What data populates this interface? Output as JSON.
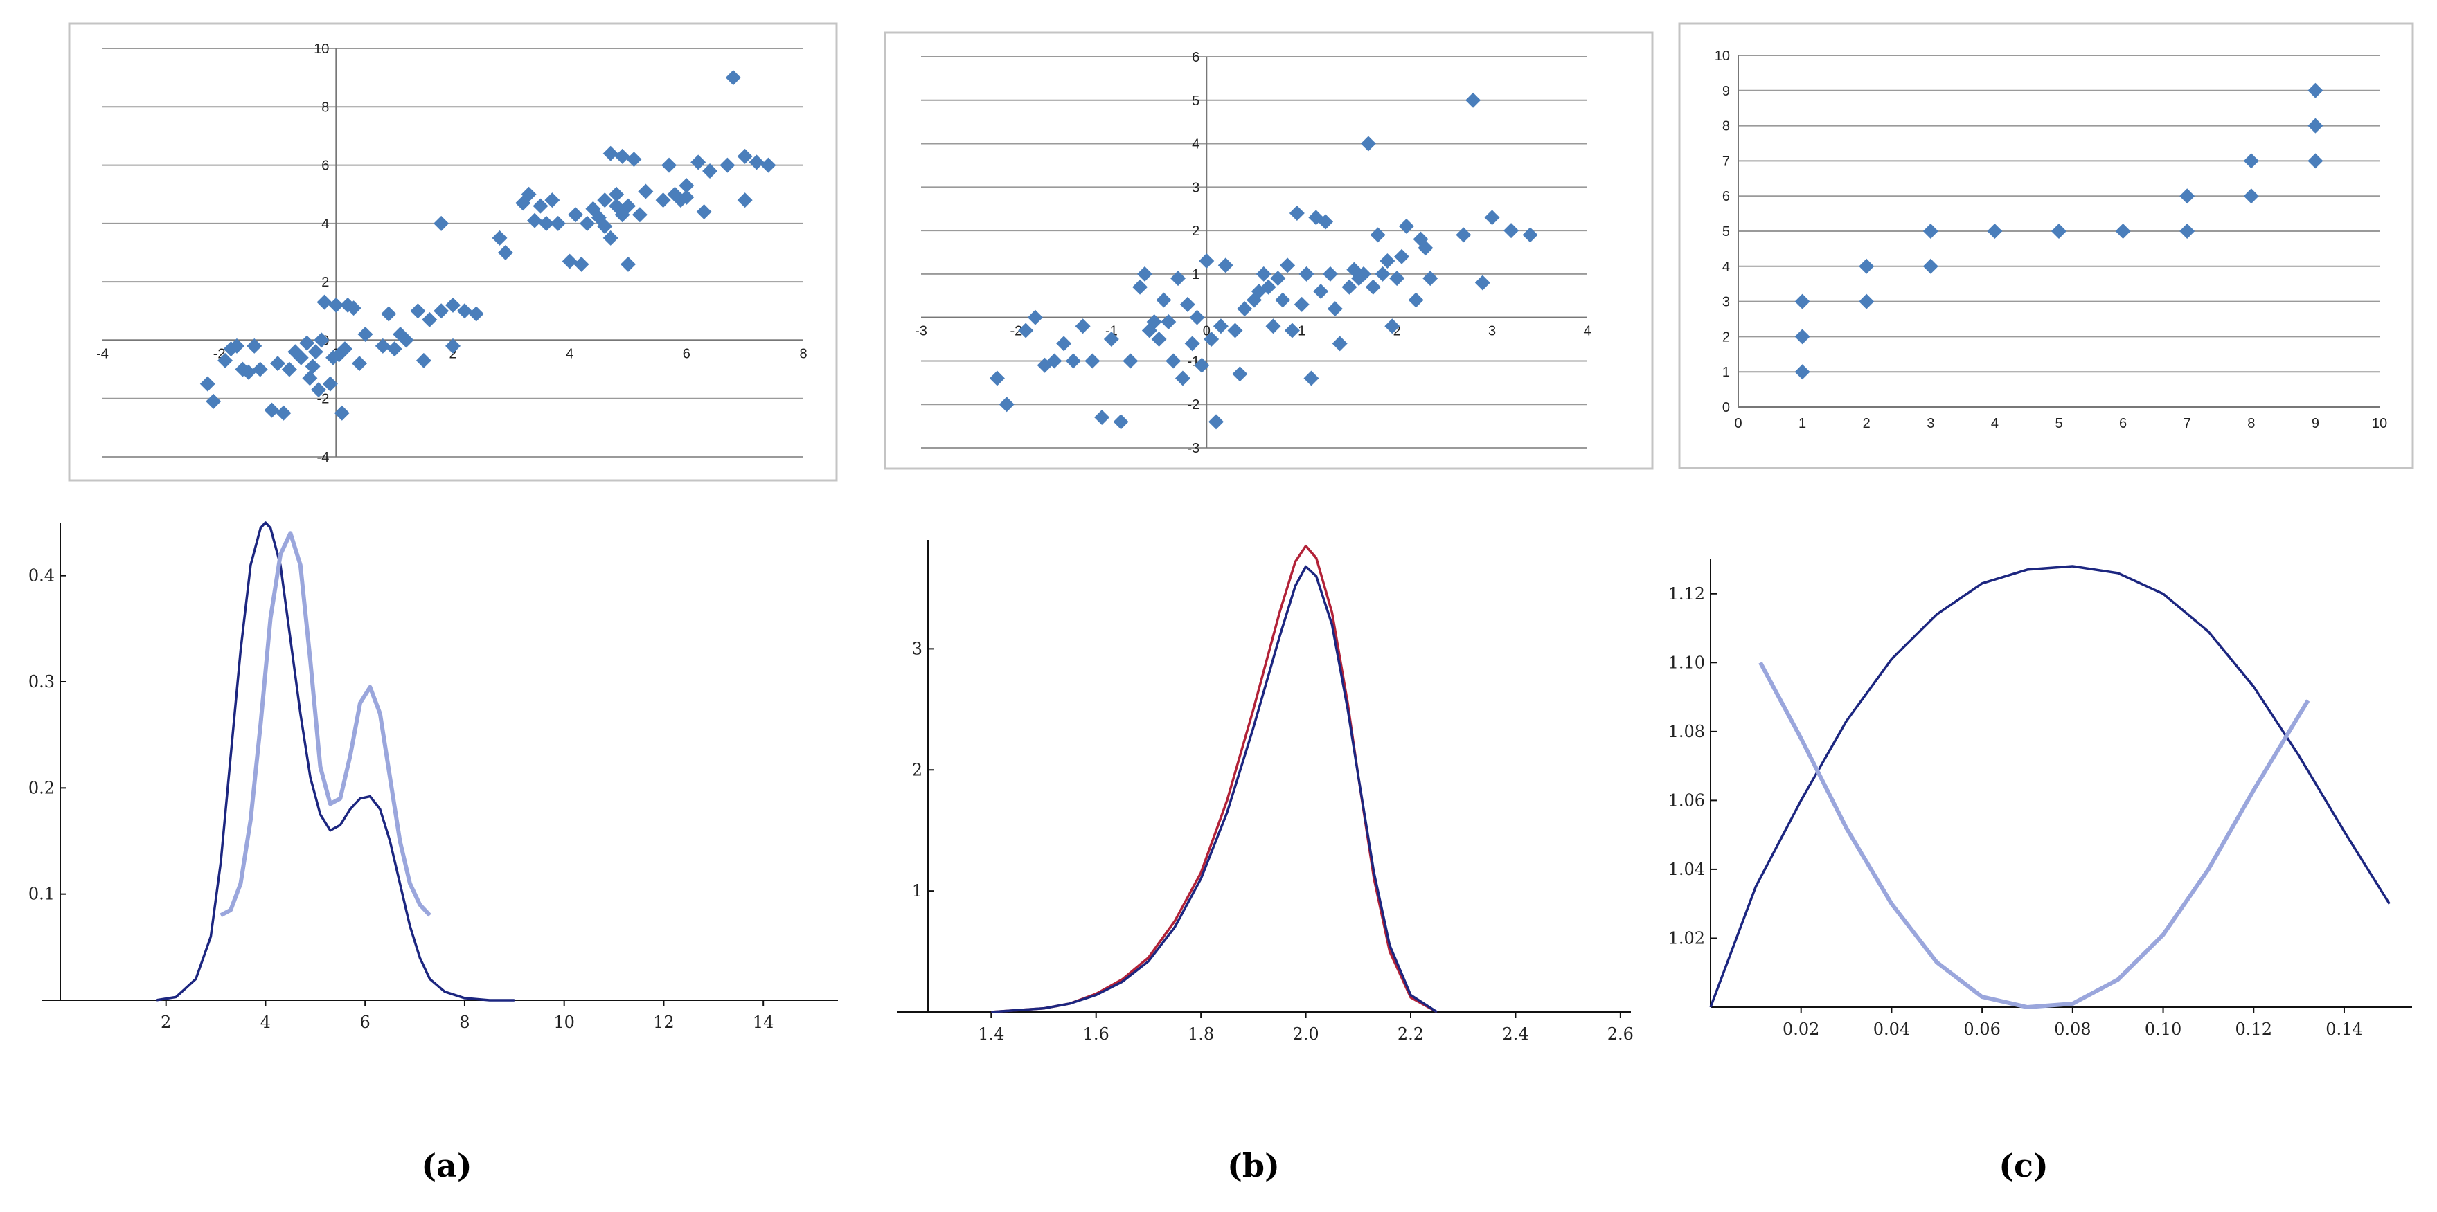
{
  "colors": {
    "scatter": "#4a7ebb",
    "dark": "#1c2680",
    "light": "#9aa6dc",
    "red": "#b22238",
    "grid": "#9a9a9a",
    "frame": "#c4c4c4"
  },
  "captions": [
    "(a)",
    "(b)",
    "(c)"
  ],
  "chart_data": [
    {
      "id": "a_top",
      "type": "scatter",
      "title": "",
      "xlabel": "",
      "ylabel": "",
      "xlim": [
        -4,
        8
      ],
      "ylim": [
        -4,
        10
      ],
      "grid": true,
      "xticks": [
        -4,
        -2,
        0,
        2,
        4,
        6,
        8
      ],
      "yticks": [
        -4,
        -2,
        0,
        2,
        4,
        6,
        8,
        10
      ],
      "points": [
        [
          -2.2,
          -1.5
        ],
        [
          -2.1,
          -2.1
        ],
        [
          -1.9,
          -0.7
        ],
        [
          -1.8,
          -0.3
        ],
        [
          -1.7,
          -0.2
        ],
        [
          -1.6,
          -1.0
        ],
        [
          -1.5,
          -1.1
        ],
        [
          -1.4,
          -0.2
        ],
        [
          -1.3,
          -1.0
        ],
        [
          -1.1,
          -2.4
        ],
        [
          -1.0,
          -0.8
        ],
        [
          -0.9,
          -2.5
        ],
        [
          -0.8,
          -1.0
        ],
        [
          -0.7,
          -0.4
        ],
        [
          -0.6,
          -0.6
        ],
        [
          -0.5,
          -0.1
        ],
        [
          -0.45,
          -1.3
        ],
        [
          -0.4,
          -0.9
        ],
        [
          -0.35,
          -0.4
        ],
        [
          -0.3,
          -1.7
        ],
        [
          -0.25,
          0.0
        ],
        [
          -0.2,
          1.3
        ],
        [
          -0.1,
          -1.5
        ],
        [
          -0.05,
          -0.6
        ],
        [
          0.0,
          1.2
        ],
        [
          0.05,
          -0.5
        ],
        [
          0.1,
          -2.5
        ],
        [
          0.15,
          -0.3
        ],
        [
          0.2,
          1.2
        ],
        [
          0.3,
          1.1
        ],
        [
          0.4,
          -0.8
        ],
        [
          0.5,
          0.2
        ],
        [
          0.8,
          -0.2
        ],
        [
          0.9,
          0.9
        ],
        [
          1.0,
          -0.3
        ],
        [
          1.1,
          0.2
        ],
        [
          1.2,
          0.0
        ],
        [
          1.4,
          1.0
        ],
        [
          1.5,
          -0.7
        ],
        [
          1.6,
          0.7
        ],
        [
          1.8,
          1.0
        ],
        [
          1.8,
          4.0
        ],
        [
          2.0,
          -0.2
        ],
        [
          2.0,
          1.2
        ],
        [
          2.2,
          1.0
        ],
        [
          2.4,
          0.9
        ],
        [
          2.8,
          3.5
        ],
        [
          2.9,
          3.0
        ],
        [
          3.2,
          4.7
        ],
        [
          3.3,
          5.0
        ],
        [
          3.4,
          4.1
        ],
        [
          3.5,
          4.6
        ],
        [
          3.6,
          4.0
        ],
        [
          3.7,
          4.8
        ],
        [
          3.8,
          4.0
        ],
        [
          4.0,
          2.7
        ],
        [
          4.1,
          4.3
        ],
        [
          4.2,
          2.6
        ],
        [
          4.3,
          4.0
        ],
        [
          4.4,
          4.5
        ],
        [
          4.5,
          4.2
        ],
        [
          4.6,
          4.8
        ],
        [
          4.6,
          3.9
        ],
        [
          4.7,
          6.4
        ],
        [
          4.7,
          3.5
        ],
        [
          4.8,
          5.0
        ],
        [
          4.8,
          4.6
        ],
        [
          4.9,
          6.3
        ],
        [
          4.9,
          4.3
        ],
        [
          5.0,
          2.6
        ],
        [
          5.0,
          4.6
        ],
        [
          5.1,
          6.2
        ],
        [
          5.2,
          4.3
        ],
        [
          5.3,
          5.1
        ],
        [
          5.6,
          4.8
        ],
        [
          5.7,
          6.0
        ],
        [
          5.8,
          5.0
        ],
        [
          5.9,
          4.8
        ],
        [
          6.0,
          5.3
        ],
        [
          6.0,
          4.9
        ],
        [
          6.2,
          6.1
        ],
        [
          6.3,
          4.4
        ],
        [
          6.4,
          5.8
        ],
        [
          6.7,
          6.0
        ],
        [
          6.8,
          9.0
        ],
        [
          7.0,
          6.3
        ],
        [
          7.0,
          4.8
        ],
        [
          7.2,
          6.1
        ],
        [
          7.4,
          6.0
        ]
      ]
    },
    {
      "id": "b_top",
      "type": "scatter",
      "title": "",
      "xlabel": "",
      "ylabel": "",
      "xlim": [
        -3,
        4
      ],
      "ylim": [
        -3,
        6
      ],
      "grid": true,
      "xticks": [
        -3,
        -2,
        -1,
        0,
        1,
        2,
        3,
        4
      ],
      "yticks": [
        -3,
        -2,
        -1,
        0,
        1,
        2,
        3,
        4,
        5,
        6
      ],
      "points": [
        [
          -2.2,
          -1.4
        ],
        [
          -2.1,
          -2.0
        ],
        [
          -1.9,
          -0.3
        ],
        [
          -1.8,
          0.0
        ],
        [
          -1.7,
          -1.1
        ],
        [
          -1.6,
          -1.0
        ],
        [
          -1.5,
          -0.6
        ],
        [
          -1.4,
          -1.0
        ],
        [
          -1.3,
          -0.2
        ],
        [
          -1.2,
          -1.0
        ],
        [
          -1.1,
          -2.3
        ],
        [
          -1.0,
          -0.5
        ],
        [
          -0.9,
          -2.4
        ],
        [
          -0.8,
          -1.0
        ],
        [
          -0.7,
          0.7
        ],
        [
          -0.65,
          1.0
        ],
        [
          -0.6,
          -0.3
        ],
        [
          -0.55,
          -0.1
        ],
        [
          -0.5,
          -0.5
        ],
        [
          -0.45,
          0.4
        ],
        [
          -0.4,
          -0.1
        ],
        [
          -0.35,
          -1.0
        ],
        [
          -0.3,
          0.9
        ],
        [
          -0.25,
          -1.4
        ],
        [
          -0.2,
          0.3
        ],
        [
          -0.15,
          -0.6
        ],
        [
          -0.1,
          0.0
        ],
        [
          -0.05,
          -1.1
        ],
        [
          0.0,
          1.3
        ],
        [
          0.05,
          -0.5
        ],
        [
          0.1,
          -2.4
        ],
        [
          0.15,
          -0.2
        ],
        [
          0.2,
          1.2
        ],
        [
          0.3,
          -0.3
        ],
        [
          0.35,
          -1.3
        ],
        [
          0.4,
          0.2
        ],
        [
          0.5,
          0.4
        ],
        [
          0.55,
          0.6
        ],
        [
          0.6,
          1.0
        ],
        [
          0.65,
          0.7
        ],
        [
          0.7,
          -0.2
        ],
        [
          0.75,
          0.9
        ],
        [
          0.8,
          0.4
        ],
        [
          0.85,
          1.2
        ],
        [
          0.9,
          -0.3
        ],
        [
          0.95,
          2.4
        ],
        [
          1.0,
          0.3
        ],
        [
          1.05,
          1.0
        ],
        [
          1.1,
          -1.4
        ],
        [
          1.15,
          2.3
        ],
        [
          1.2,
          0.6
        ],
        [
          1.25,
          2.2
        ],
        [
          1.3,
          1.0
        ],
        [
          1.35,
          0.2
        ],
        [
          1.4,
          -0.6
        ],
        [
          1.5,
          0.7
        ],
        [
          1.55,
          1.1
        ],
        [
          1.6,
          0.9
        ],
        [
          1.65,
          1.0
        ],
        [
          1.7,
          4.0
        ],
        [
          1.75,
          0.7
        ],
        [
          1.8,
          1.9
        ],
        [
          1.85,
          1.0
        ],
        [
          1.9,
          1.3
        ],
        [
          1.95,
          -0.2
        ],
        [
          2.0,
          0.9
        ],
        [
          2.05,
          1.4
        ],
        [
          2.1,
          2.1
        ],
        [
          2.2,
          0.4
        ],
        [
          2.25,
          1.8
        ],
        [
          2.3,
          1.6
        ],
        [
          2.35,
          0.9
        ],
        [
          2.7,
          1.9
        ],
        [
          2.8,
          5.0
        ],
        [
          2.9,
          0.8
        ],
        [
          3.0,
          2.3
        ],
        [
          3.2,
          2.0
        ],
        [
          3.4,
          1.9
        ]
      ]
    },
    {
      "id": "c_top",
      "type": "scatter",
      "title": "",
      "xlabel": "",
      "ylabel": "",
      "xlim": [
        0,
        10
      ],
      "ylim": [
        0,
        10
      ],
      "grid": true,
      "xticks": [
        0,
        1,
        2,
        3,
        4,
        5,
        6,
        7,
        8,
        9,
        10
      ],
      "yticks": [
        0,
        1,
        2,
        3,
        4,
        5,
        6,
        7,
        8,
        9,
        10
      ],
      "points": [
        [
          1,
          1
        ],
        [
          1,
          2
        ],
        [
          1,
          3
        ],
        [
          2,
          3
        ],
        [
          2,
          4
        ],
        [
          3,
          4
        ],
        [
          3,
          5
        ],
        [
          4,
          5
        ],
        [
          5,
          5
        ],
        [
          6,
          5
        ],
        [
          7,
          5
        ],
        [
          7,
          6
        ],
        [
          8,
          6
        ],
        [
          8,
          7
        ],
        [
          9,
          7
        ],
        [
          9,
          8
        ],
        [
          9,
          9
        ]
      ]
    },
    {
      "id": "a_bottom",
      "type": "line",
      "title": "",
      "xlabel": "",
      "ylabel": "",
      "xlim": [
        -0.5,
        15.5
      ],
      "ylim": [
        0,
        0.45
      ],
      "xticks": [
        2,
        4,
        6,
        8,
        10,
        12,
        14
      ],
      "yticks": [
        0.1,
        0.2,
        0.3,
        0.4
      ],
      "series": [
        {
          "name": "dark",
          "x": [
            1.8,
            2.2,
            2.6,
            2.9,
            3.1,
            3.3,
            3.5,
            3.7,
            3.9,
            4.0,
            4.1,
            4.3,
            4.5,
            4.7,
            4.9,
            5.1,
            5.3,
            5.5,
            5.7,
            5.9,
            6.1,
            6.3,
            6.5,
            6.7,
            6.9,
            7.1,
            7.3,
            7.6,
            8.0,
            8.5,
            9.0
          ],
          "y": [
            0.0,
            0.003,
            0.02,
            0.06,
            0.13,
            0.23,
            0.33,
            0.41,
            0.445,
            0.45,
            0.445,
            0.41,
            0.34,
            0.27,
            0.21,
            0.175,
            0.16,
            0.165,
            0.18,
            0.19,
            0.192,
            0.18,
            0.15,
            0.11,
            0.07,
            0.04,
            0.02,
            0.008,
            0.002,
            0.0,
            0.0
          ]
        },
        {
          "name": "light",
          "x": [
            3.1,
            3.3,
            3.5,
            3.7,
            3.9,
            4.1,
            4.3,
            4.5,
            4.7,
            4.9,
            5.1,
            5.3,
            5.5,
            5.7,
            5.9,
            6.1,
            6.3,
            6.5,
            6.7,
            6.9,
            7.1,
            7.3
          ],
          "y": [
            0.08,
            0.085,
            0.11,
            0.17,
            0.26,
            0.36,
            0.42,
            0.44,
            0.41,
            0.32,
            0.22,
            0.185,
            0.19,
            0.23,
            0.28,
            0.295,
            0.27,
            0.21,
            0.15,
            0.11,
            0.09,
            0.08
          ]
        }
      ]
    },
    {
      "id": "b_bottom",
      "type": "line",
      "title": "",
      "xlabel": "",
      "ylabel": "",
      "xlim": [
        1.22,
        2.62
      ],
      "ylim": [
        0,
        3.9
      ],
      "xticks": [
        1.4,
        1.6,
        1.8,
        2.0,
        2.2,
        2.4,
        2.6
      ],
      "yticks": [
        1,
        2,
        3
      ],
      "series": [
        {
          "name": "red",
          "x": [
            1.4,
            1.5,
            1.55,
            1.6,
            1.65,
            1.7,
            1.75,
            1.8,
            1.85,
            1.9,
            1.95,
            1.98,
            2.0,
            2.02,
            2.05,
            2.08,
            2.1,
            2.13,
            2.16,
            2.2,
            2.25
          ],
          "y": [
            0.0,
            0.03,
            0.07,
            0.15,
            0.27,
            0.45,
            0.75,
            1.15,
            1.75,
            2.5,
            3.3,
            3.72,
            3.85,
            3.75,
            3.3,
            2.55,
            1.95,
            1.1,
            0.5,
            0.12,
            0.0
          ]
        },
        {
          "name": "dark",
          "x": [
            1.4,
            1.5,
            1.55,
            1.6,
            1.65,
            1.7,
            1.75,
            1.8,
            1.85,
            1.9,
            1.95,
            1.98,
            2.0,
            2.02,
            2.05,
            2.08,
            2.1,
            2.13,
            2.16,
            2.2,
            2.25
          ],
          "y": [
            0.0,
            0.03,
            0.07,
            0.14,
            0.25,
            0.42,
            0.7,
            1.1,
            1.65,
            2.35,
            3.1,
            3.52,
            3.68,
            3.6,
            3.2,
            2.5,
            1.95,
            1.15,
            0.55,
            0.14,
            0.0
          ]
        }
      ]
    },
    {
      "id": "c_bottom",
      "type": "line",
      "title": "",
      "xlabel": "",
      "ylabel": "",
      "xlim": [
        0,
        0.155
      ],
      "ylim": [
        1.0,
        1.13
      ],
      "xticks": [
        0.02,
        0.04,
        0.06,
        0.08,
        0.1,
        0.12,
        0.14
      ],
      "yticks": [
        1.02,
        1.04,
        1.06,
        1.08,
        1.1,
        1.12
      ],
      "series": [
        {
          "name": "dark",
          "x": [
            0.0,
            0.01,
            0.02,
            0.03,
            0.04,
            0.05,
            0.06,
            0.07,
            0.08,
            0.09,
            0.1,
            0.11,
            0.12,
            0.13,
            0.14,
            0.15
          ],
          "y": [
            1.0,
            1.035,
            1.06,
            1.083,
            1.101,
            1.114,
            1.123,
            1.127,
            1.128,
            1.126,
            1.12,
            1.109,
            1.093,
            1.073,
            1.051,
            1.03
          ]
        },
        {
          "name": "light",
          "x": [
            0.011,
            0.02,
            0.03,
            0.04,
            0.05,
            0.06,
            0.07,
            0.08,
            0.09,
            0.1,
            0.11,
            0.12,
            0.132
          ],
          "y": [
            1.1,
            1.078,
            1.052,
            1.03,
            1.013,
            1.003,
            1.0,
            1.001,
            1.008,
            1.021,
            1.04,
            1.063,
            1.089
          ]
        }
      ]
    }
  ]
}
